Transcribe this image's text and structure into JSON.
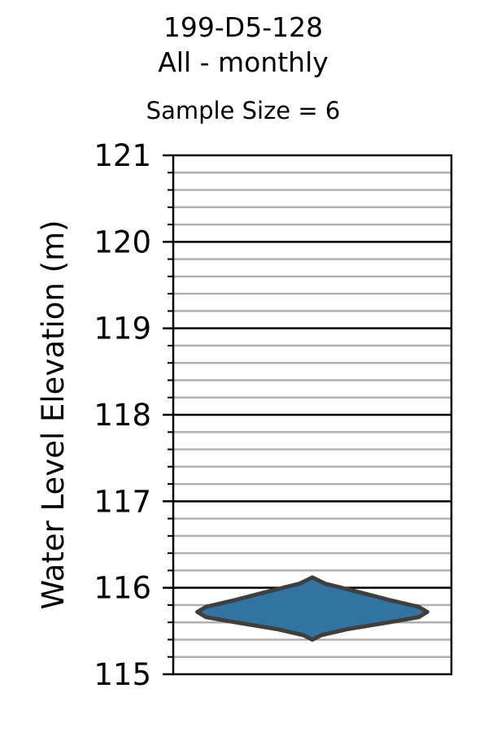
{
  "chart_data": {
    "type": "violin",
    "title": "199-D5-128",
    "subtitle": "All - monthly",
    "annotation": "Sample Size = 6",
    "xlabel": "",
    "ylabel": "Water Level Elevation (m)",
    "ylim": [
      115,
      121
    ],
    "yticks": [
      "115",
      "116",
      "117",
      "118",
      "119",
      "120",
      "121"
    ],
    "major_gridlines": [
      116,
      117,
      118,
      119,
      120
    ],
    "minor_grid_step": 0.2,
    "grid": true,
    "series": [
      {
        "fill_color": "#3274a1",
        "edge_color": "#3f3f3f",
        "y_min": 115.4,
        "y_max": 116.12,
        "density_profile": [
          {
            "y": 115.4,
            "half_width": 0.0
          },
          {
            "y": 115.45,
            "half_width": 0.07
          },
          {
            "y": 115.52,
            "half_width": 0.28
          },
          {
            "y": 115.6,
            "half_width": 0.62
          },
          {
            "y": 115.66,
            "half_width": 0.86
          },
          {
            "y": 115.72,
            "half_width": 0.93
          },
          {
            "y": 115.78,
            "half_width": 0.86
          },
          {
            "y": 115.86,
            "half_width": 0.62
          },
          {
            "y": 115.96,
            "half_width": 0.35
          },
          {
            "y": 116.05,
            "half_width": 0.1
          },
          {
            "y": 116.12,
            "half_width": 0.0
          }
        ]
      }
    ]
  }
}
